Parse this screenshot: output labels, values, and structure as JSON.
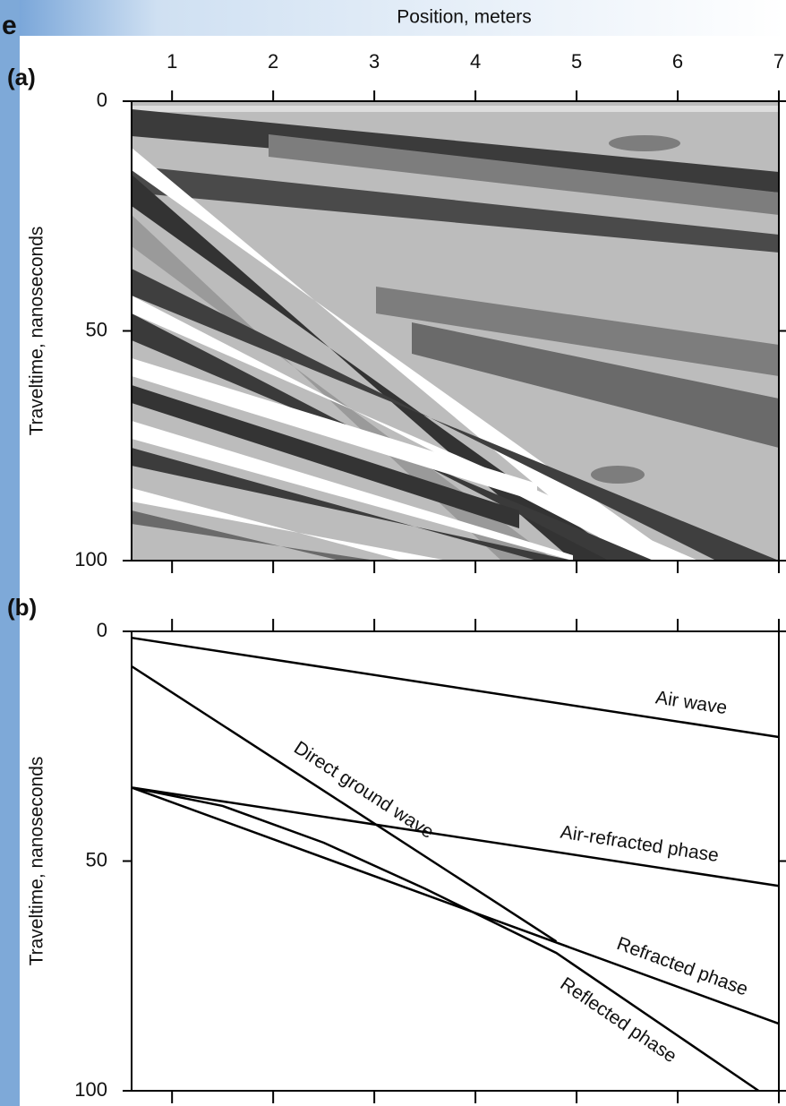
{
  "corner_text": "e",
  "chart_data": [
    {
      "type": "contour",
      "label": "(a)",
      "title": "Position, meters",
      "ylabel": "Traveltime, nanoseconds",
      "xlim": [
        0.6,
        7
      ],
      "xticks": [
        1,
        2,
        3,
        4,
        5,
        6,
        7
      ],
      "ylim": [
        0,
        100
      ],
      "yticks": [
        0,
        50,
        100
      ],
      "y_inverted": true
    },
    {
      "type": "line",
      "label": "(b)",
      "ylabel": "Traveltime, nanoseconds",
      "xlim": [
        0.6,
        7
      ],
      "xticks": [
        1,
        2,
        3,
        4,
        5,
        6,
        7
      ],
      "ylim": [
        0,
        100
      ],
      "yticks": [
        0,
        50,
        100
      ],
      "y_inverted": true,
      "series": [
        {
          "name": "Air wave",
          "color": "#000000",
          "x": [
            0.6,
            7
          ],
          "values": [
            1.4,
            23
          ]
        },
        {
          "name": "Direct ground wave",
          "color": "#000000",
          "x": [
            0.6,
            4.8
          ],
          "values": [
            7.6,
            67.5
          ]
        },
        {
          "name": "Air-refracted phase",
          "color": "#000000",
          "x": [
            0.6,
            7
          ],
          "values": [
            34,
            55.4
          ]
        },
        {
          "name": "Refracted phase",
          "color": "#000000",
          "x": [
            0.6,
            7
          ],
          "values": [
            34,
            85.4
          ]
        },
        {
          "name": "Reflected phase",
          "color": "#000000",
          "x": [
            0.6,
            1.5,
            2.5,
            3.5,
            4.8,
            6.8
          ],
          "values": [
            34,
            38,
            46,
            56,
            70,
            100
          ]
        }
      ]
    }
  ]
}
